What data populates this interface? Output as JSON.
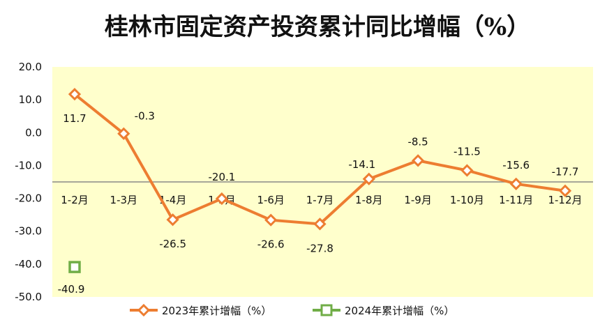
{
  "chart_data": {
    "type": "line",
    "title": "桂林市固定资产投资累计同比增幅（%）",
    "categories": [
      "1-2月",
      "1-3月",
      "1-4月",
      "1-5月",
      "1-6月",
      "1-7月",
      "1-8月",
      "1-9月",
      "1-10月",
      "1-11月",
      "1-12月"
    ],
    "yticks": [
      "20.0",
      "10.0",
      "0.0",
      "-10.0",
      "-20.0",
      "-30.0",
      "-40.0",
      "-50.0"
    ],
    "ylim": [
      -50,
      20
    ],
    "grid": false,
    "legend_position": "bottom",
    "plot_background": "#FFFFCC",
    "series": [
      {
        "name": "2023年累计增幅（%）",
        "color": "#ED7D31",
        "marker": "diamond",
        "values": [
          11.7,
          -0.3,
          -26.5,
          -20.1,
          -26.6,
          -27.8,
          -14.1,
          -8.5,
          -11.5,
          -15.6,
          -17.7
        ],
        "labels": [
          "11.7",
          "-0.3",
          "-26.5",
          "-20.1",
          "-26.6",
          "-27.8",
          "-14.1",
          "-8.5",
          "-11.5",
          "-15.6",
          "-17.7"
        ]
      },
      {
        "name": "2024年累计增幅（%）",
        "color": "#70AD47",
        "marker": "square",
        "values": [
          -40.9,
          null,
          null,
          null,
          null,
          null,
          null,
          null,
          null,
          null,
          null
        ],
        "labels": [
          "-40.9",
          null,
          null,
          null,
          null,
          null,
          null,
          null,
          null,
          null,
          null
        ]
      }
    ]
  }
}
